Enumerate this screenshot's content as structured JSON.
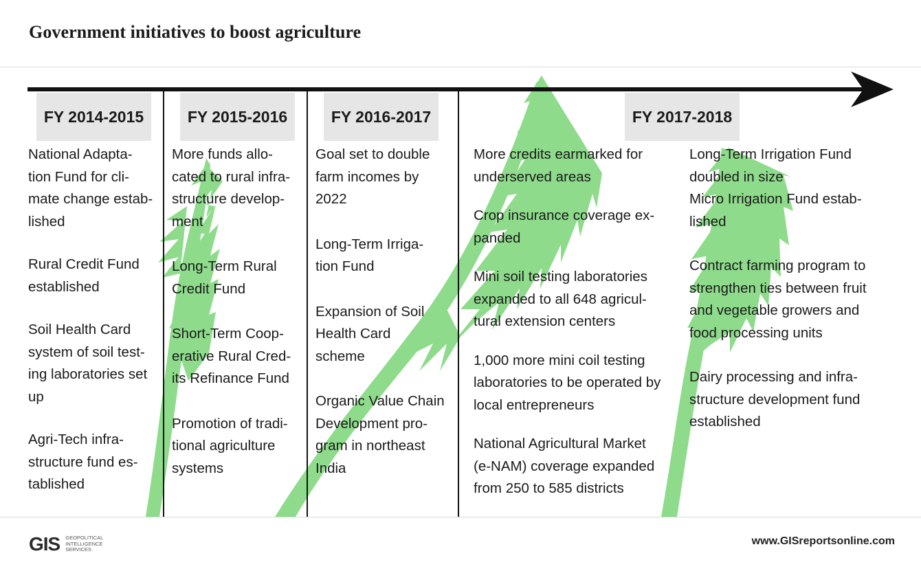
{
  "title": "Government initiatives to boost agriculture",
  "colors": {
    "accent_green": "#8edb8b",
    "timeline": "#111111",
    "period_bg": "#e6e6e6"
  },
  "periods": [
    {
      "label": "FY 2014-2015",
      "items": [
        "National Adapta-\ntion Fund for cli-\nmate change estab-\nlished",
        "Rural Credit Fund\nestablished",
        "Soil Health Card\nsystem of soil test-\ning laboratories set\nup",
        "Agri-Tech infra-\nstructure fund es-\ntablished"
      ]
    },
    {
      "label": "FY 2015-2016",
      "items": [
        "More funds allo-\ncated to rural infra-\nstructure develop-\nment",
        "Long-Term Rural\nCredit Fund",
        "Short-Term Coop-\nerative Rural Cred-\nits Refinance Fund",
        "Promotion of tradi-\ntional agriculture\nsystems"
      ]
    },
    {
      "label": "FY 2016-2017",
      "items": [
        "Goal set to double\nfarm incomes by\n2022",
        "Long-Term Irriga-\ntion Fund",
        "Expansion of Soil\nHealth Card\nscheme",
        "Organic Value Chain\nDevelopment pro-\ngram in northeast\nIndia"
      ]
    },
    {
      "label": "FY 2017-2018",
      "items_left": [
        "More credits earmarked for\nunderserved areas",
        "Crop insurance coverage ex-\npanded",
        "Mini soil testing laboratories\nexpanded to all 648 agricul-\ntural extension centers",
        "1,000 more mini coil testing\nlaboratories to be operated by\nlocal entrepreneurs",
        "National Agricultural Market\n(e-NAM) coverage expanded\nfrom 250 to 585 districts"
      ],
      "items_right": [
        "Long-Term Irrigation Fund\ndoubled in size\nMicro Irrigation Fund estab-\nlished",
        "Contract farming program to\nstrengthen ties between fruit\nand vegetable growers and\nfood processing units",
        "Dairy processing and infra-\nstructure development fund\nestablished"
      ]
    }
  ],
  "footer": {
    "logo_mark": "GIS",
    "logo_text": "GEOPOLITICAL\nINTELLIGENCE\nSERVICES",
    "url": "www.GISreportsonline.com"
  }
}
